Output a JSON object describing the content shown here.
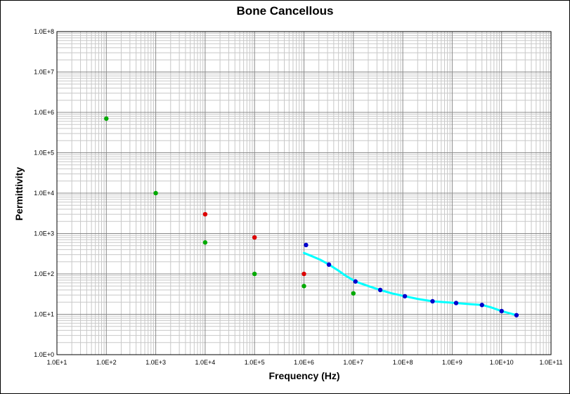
{
  "chart_data": {
    "type": "scatter",
    "title": "Bone Cancellous",
    "xlabel": "Frequency (Hz)",
    "ylabel": "Permittivity",
    "xscale": "log",
    "yscale": "log",
    "xlim": [
      10,
      100000000000
    ],
    "ylim": [
      1,
      100000000
    ],
    "grid": true,
    "x_ticks": [
      "1.0E+1",
      "1.0E+2",
      "1.0E+3",
      "1.0E+4",
      "1.0E+5",
      "1.0E+6",
      "1.0E+7",
      "1.0E+8",
      "1.0E+9",
      "1.0E+10",
      "1.0E+11"
    ],
    "y_ticks": [
      "1.0E+0",
      "1.0E+1",
      "1.0E+2",
      "1.0E+3",
      "1.0E+4",
      "1.0E+5",
      "1.0E+6",
      "1.0E+7",
      "1.0E+8"
    ],
    "series": [
      {
        "kind": "points",
        "color": "#00aa00",
        "points": [
          [
            100,
            700000
          ],
          [
            1000,
            10000
          ],
          [
            10000,
            600
          ],
          [
            100000,
            100
          ],
          [
            1000000,
            50
          ],
          [
            10000000,
            33
          ]
        ]
      },
      {
        "kind": "points",
        "color": "#dd0000",
        "points": [
          [
            10000,
            3000
          ],
          [
            100000,
            800
          ],
          [
            1000000,
            100
          ]
        ]
      },
      {
        "kind": "points",
        "color": "#0000cc",
        "points": [
          [
            1100000,
            520
          ],
          [
            3200000,
            170
          ],
          [
            11000000,
            65
          ],
          [
            35000000,
            40
          ],
          [
            110000000,
            28
          ],
          [
            400000000,
            21
          ],
          [
            1200000000,
            19
          ],
          [
            4000000000,
            17
          ],
          [
            10000000000,
            12
          ],
          [
            20000000000,
            9.5
          ]
        ]
      },
      {
        "kind": "line",
        "color": "#00ffff",
        "points": [
          [
            1000000,
            330
          ],
          [
            1500000,
            270
          ],
          [
            2200000,
            220
          ],
          [
            3200000,
            170
          ],
          [
            5000000,
            120
          ],
          [
            7000000,
            90
          ],
          [
            11000000,
            65
          ],
          [
            20000000,
            50
          ],
          [
            35000000,
            40
          ],
          [
            60000000,
            33
          ],
          [
            110000000,
            28
          ],
          [
            200000000,
            24
          ],
          [
            400000000,
            21
          ],
          [
            700000000,
            20
          ],
          [
            1200000000,
            19
          ],
          [
            2000000000,
            18
          ],
          [
            4000000000,
            17
          ],
          [
            6000000000,
            15
          ],
          [
            10000000000,
            12
          ],
          [
            15000000000,
            10.5
          ],
          [
            20000000000,
            9.5
          ]
        ]
      }
    ]
  }
}
